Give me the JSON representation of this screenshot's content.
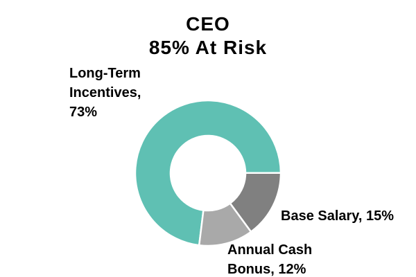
{
  "chart_data": {
    "type": "pie",
    "donut": true,
    "title": "CEO",
    "subtitle": "85% At Risk",
    "start_angle_deg": 187,
    "direction": "clockwise",
    "legend_position": "none",
    "segments": [
      {
        "name": "Long-Term Incentives",
        "value": 73,
        "color": "#5FC0B3",
        "label": "Long-Term Incentives, 73%",
        "label_lines": [
          "Long-Term",
          "Incentives,",
          "73%"
        ]
      },
      {
        "name": "Base Salary",
        "value": 15,
        "color": "#808080",
        "label": "Base Salary, 15%",
        "label_lines": [
          "Base Salary, 15%"
        ]
      },
      {
        "name": "Annual Cash Bonus",
        "value": 12,
        "color": "#A9A9A9",
        "label": "Annual Cash Bonus, 12%",
        "label_lines": [
          "Annual Cash",
          "Bonus, 12%"
        ]
      }
    ],
    "colors": {
      "background": "#FFFFFF",
      "text": "#000000",
      "slice_gap": "#FFFFFF"
    }
  }
}
